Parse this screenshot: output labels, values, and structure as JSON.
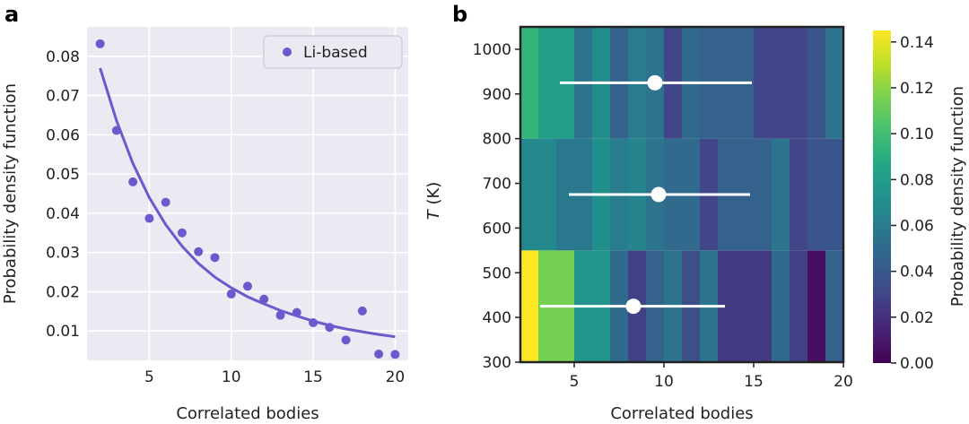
{
  "panel_a_label": "a",
  "panel_b_label": "b",
  "colors": {
    "accent": "#6a5acd",
    "plot_background": "#eaeaf2",
    "grid": "#ffffff",
    "errorbar": "#ffffff",
    "frame": "#222222"
  },
  "chart_data": [
    {
      "type": "scatter",
      "title": "",
      "xlabel": "Correlated bodies",
      "ylabel": "Probability density function",
      "xlim": [
        1.2,
        20.8
      ],
      "ylim": [
        0.0025,
        0.0875
      ],
      "xticks": [
        "5",
        "10",
        "15",
        "20"
      ],
      "xtick_values": [
        5,
        10,
        15,
        20
      ],
      "yticks": [
        "0.01",
        "0.02",
        "0.03",
        "0.04",
        "0.05",
        "0.06",
        "0.07",
        "0.08"
      ],
      "ytick_values": [
        0.01,
        0.02,
        0.03,
        0.04,
        0.05,
        0.06,
        0.07,
        0.08
      ],
      "legend": {
        "label": "Li-based",
        "placement": "top-right"
      },
      "series": [
        {
          "name": "Li-based",
          "x": [
            2,
            3,
            4,
            5,
            6,
            7,
            8,
            9,
            10,
            11,
            12,
            13,
            14,
            15,
            16,
            17,
            18,
            19,
            20
          ],
          "y": [
            0.0832,
            0.0611,
            0.048,
            0.0387,
            0.0428,
            0.035,
            0.0302,
            0.0287,
            0.0194,
            0.0214,
            0.0181,
            0.014,
            0.0147,
            0.0121,
            0.0109,
            0.0077,
            0.0151,
            0.0041,
            0.004
          ]
        }
      ],
      "fit": {
        "name": "Fit",
        "x": [
          2,
          3,
          4,
          5,
          6,
          7,
          8,
          9,
          10,
          11,
          12,
          13,
          14,
          15,
          16,
          17,
          18,
          19,
          20
        ],
        "y": [
          0.077,
          0.0636,
          0.0527,
          0.044,
          0.0371,
          0.0316,
          0.0272,
          0.0237,
          0.021,
          0.0187,
          0.0169,
          0.0152,
          0.0138,
          0.0125,
          0.0114,
          0.0105,
          0.0098,
          0.0091,
          0.0085
        ]
      }
    },
    {
      "type": "heatmap",
      "title": "",
      "xlabel": "Correlated bodies",
      "ylabel_italic": "T",
      "ylabel_rest": " (K)",
      "xlim": [
        2,
        20
      ],
      "ylim": [
        300,
        1050
      ],
      "xticks": [
        "5",
        "10",
        "15",
        "20"
      ],
      "xtick_values": [
        5,
        10,
        15,
        20
      ],
      "yticks": [
        "300",
        "400",
        "500",
        "600",
        "700",
        "800",
        "900",
        "1000"
      ],
      "ytick_values": [
        300,
        400,
        500,
        600,
        700,
        800,
        900,
        1000
      ],
      "colorbar": {
        "label": "Probability density function",
        "vmin": 0.0,
        "vmax": 0.145,
        "ticks": [
          "0.00",
          "0.02",
          "0.04",
          "0.06",
          "0.08",
          "0.10",
          "0.12",
          "0.14"
        ],
        "tick_values": [
          0.0,
          0.02,
          0.04,
          0.06,
          0.08,
          0.1,
          0.12,
          0.14
        ],
        "colormap": "viridis"
      },
      "rows": [
        {
          "temperature_range": [
            300,
            550
          ],
          "bins": [
            {
              "x": [
                2,
                3
              ],
              "value": 0.145
            },
            {
              "x": [
                3,
                5
              ],
              "value": 0.115
            },
            {
              "x": [
                5,
                7
              ],
              "value": 0.075
            },
            {
              "x": [
                7,
                8
              ],
              "value": 0.05
            },
            {
              "x": [
                8,
                9
              ],
              "value": 0.028
            },
            {
              "x": [
                9,
                10
              ],
              "value": 0.045
            },
            {
              "x": [
                10,
                11
              ],
              "value": 0.055
            },
            {
              "x": [
                11,
                12
              ],
              "value": 0.035
            },
            {
              "x": [
                12,
                13
              ],
              "value": 0.055
            },
            {
              "x": [
                13,
                16
              ],
              "value": 0.025
            },
            {
              "x": [
                16,
                17
              ],
              "value": 0.05
            },
            {
              "x": [
                17,
                18
              ],
              "value": 0.028
            },
            {
              "x": [
                18,
                19
              ],
              "value": 0.006
            },
            {
              "x": [
                19,
                20
              ],
              "value": 0.045
            }
          ]
        },
        {
          "temperature_range": [
            550,
            800
          ],
          "bins": [
            {
              "x": [
                2,
                4
              ],
              "value": 0.068
            },
            {
              "x": [
                4,
                6
              ],
              "value": 0.058
            },
            {
              "x": [
                6,
                7
              ],
              "value": 0.072
            },
            {
              "x": [
                7,
                8
              ],
              "value": 0.06
            },
            {
              "x": [
                8,
                9
              ],
              "value": 0.065
            },
            {
              "x": [
                9,
                10
              ],
              "value": 0.055
            },
            {
              "x": [
                10,
                12
              ],
              "value": 0.05
            },
            {
              "x": [
                12,
                13
              ],
              "value": 0.03
            },
            {
              "x": [
                13,
                16
              ],
              "value": 0.045
            },
            {
              "x": [
                16,
                17
              ],
              "value": 0.055
            },
            {
              "x": [
                17,
                18
              ],
              "value": 0.03
            },
            {
              "x": [
                18,
                20
              ],
              "value": 0.038
            }
          ]
        },
        {
          "temperature_range": [
            800,
            1050
          ],
          "bins": [
            {
              "x": [
                2,
                3
              ],
              "value": 0.095
            },
            {
              "x": [
                3,
                5
              ],
              "value": 0.08
            },
            {
              "x": [
                5,
                6
              ],
              "value": 0.055
            },
            {
              "x": [
                6,
                7
              ],
              "value": 0.07
            },
            {
              "x": [
                7,
                8
              ],
              "value": 0.045
            },
            {
              "x": [
                8,
                9
              ],
              "value": 0.06
            },
            {
              "x": [
                9,
                10
              ],
              "value": 0.055
            },
            {
              "x": [
                10,
                11
              ],
              "value": 0.03
            },
            {
              "x": [
                11,
                12
              ],
              "value": 0.05
            },
            {
              "x": [
                12,
                15
              ],
              "value": 0.045
            },
            {
              "x": [
                15,
                18
              ],
              "value": 0.03
            },
            {
              "x": [
                18,
                19
              ],
              "value": 0.038
            },
            {
              "x": [
                19,
                20
              ],
              "value": 0.055
            }
          ]
        }
      ],
      "errorbars": [
        {
          "temperature": 925,
          "mean": 9.5,
          "xmin": 4.2,
          "xmax": 14.9
        },
        {
          "temperature": 675,
          "mean": 9.7,
          "xmin": 4.7,
          "xmax": 14.8
        },
        {
          "temperature": 425,
          "mean": 8.3,
          "xmin": 3.1,
          "xmax": 13.4
        }
      ]
    }
  ]
}
